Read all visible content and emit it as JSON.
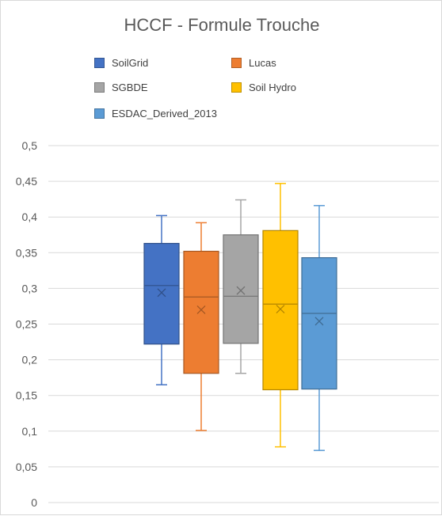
{
  "chart_data": {
    "type": "box",
    "title": "HCCF - Formule Trouche",
    "xlabel": "",
    "ylabel": "",
    "ylim": [
      0,
      0.5
    ],
    "y_ticks": [
      0,
      0.05,
      0.1,
      0.15,
      0.2,
      0.25,
      0.3,
      0.35,
      0.4,
      0.45,
      0.5
    ],
    "y_tick_labels": [
      "0",
      "0,05",
      "0,1",
      "0,15",
      "0,2",
      "0,25",
      "0,3",
      "0,35",
      "0,4",
      "0,45",
      "0,5"
    ],
    "grid": true,
    "legend_position": "top",
    "series": [
      {
        "name": "SoilGrid",
        "color": "#4472C4",
        "min": 0.165,
        "q1": 0.222,
        "median": 0.304,
        "q3": 0.363,
        "max": 0.402,
        "mean": 0.294
      },
      {
        "name": "Lucas",
        "color": "#ED7D31",
        "min": 0.101,
        "q1": 0.181,
        "median": 0.288,
        "q3": 0.352,
        "max": 0.392,
        "mean": 0.27
      },
      {
        "name": "SGBDE",
        "color": "#A5A5A5",
        "min": 0.181,
        "q1": 0.223,
        "median": 0.289,
        "q3": 0.375,
        "max": 0.424,
        "mean": 0.297
      },
      {
        "name": "Soil Hydro",
        "color": "#FFC000",
        "min": 0.078,
        "q1": 0.158,
        "median": 0.278,
        "q3": 0.381,
        "max": 0.447,
        "mean": 0.271
      },
      {
        "name": "ESDAC_Derived_2013",
        "color": "#5B9BD5",
        "min": 0.073,
        "q1": 0.159,
        "median": 0.265,
        "q3": 0.343,
        "max": 0.416,
        "mean": 0.254
      }
    ]
  }
}
